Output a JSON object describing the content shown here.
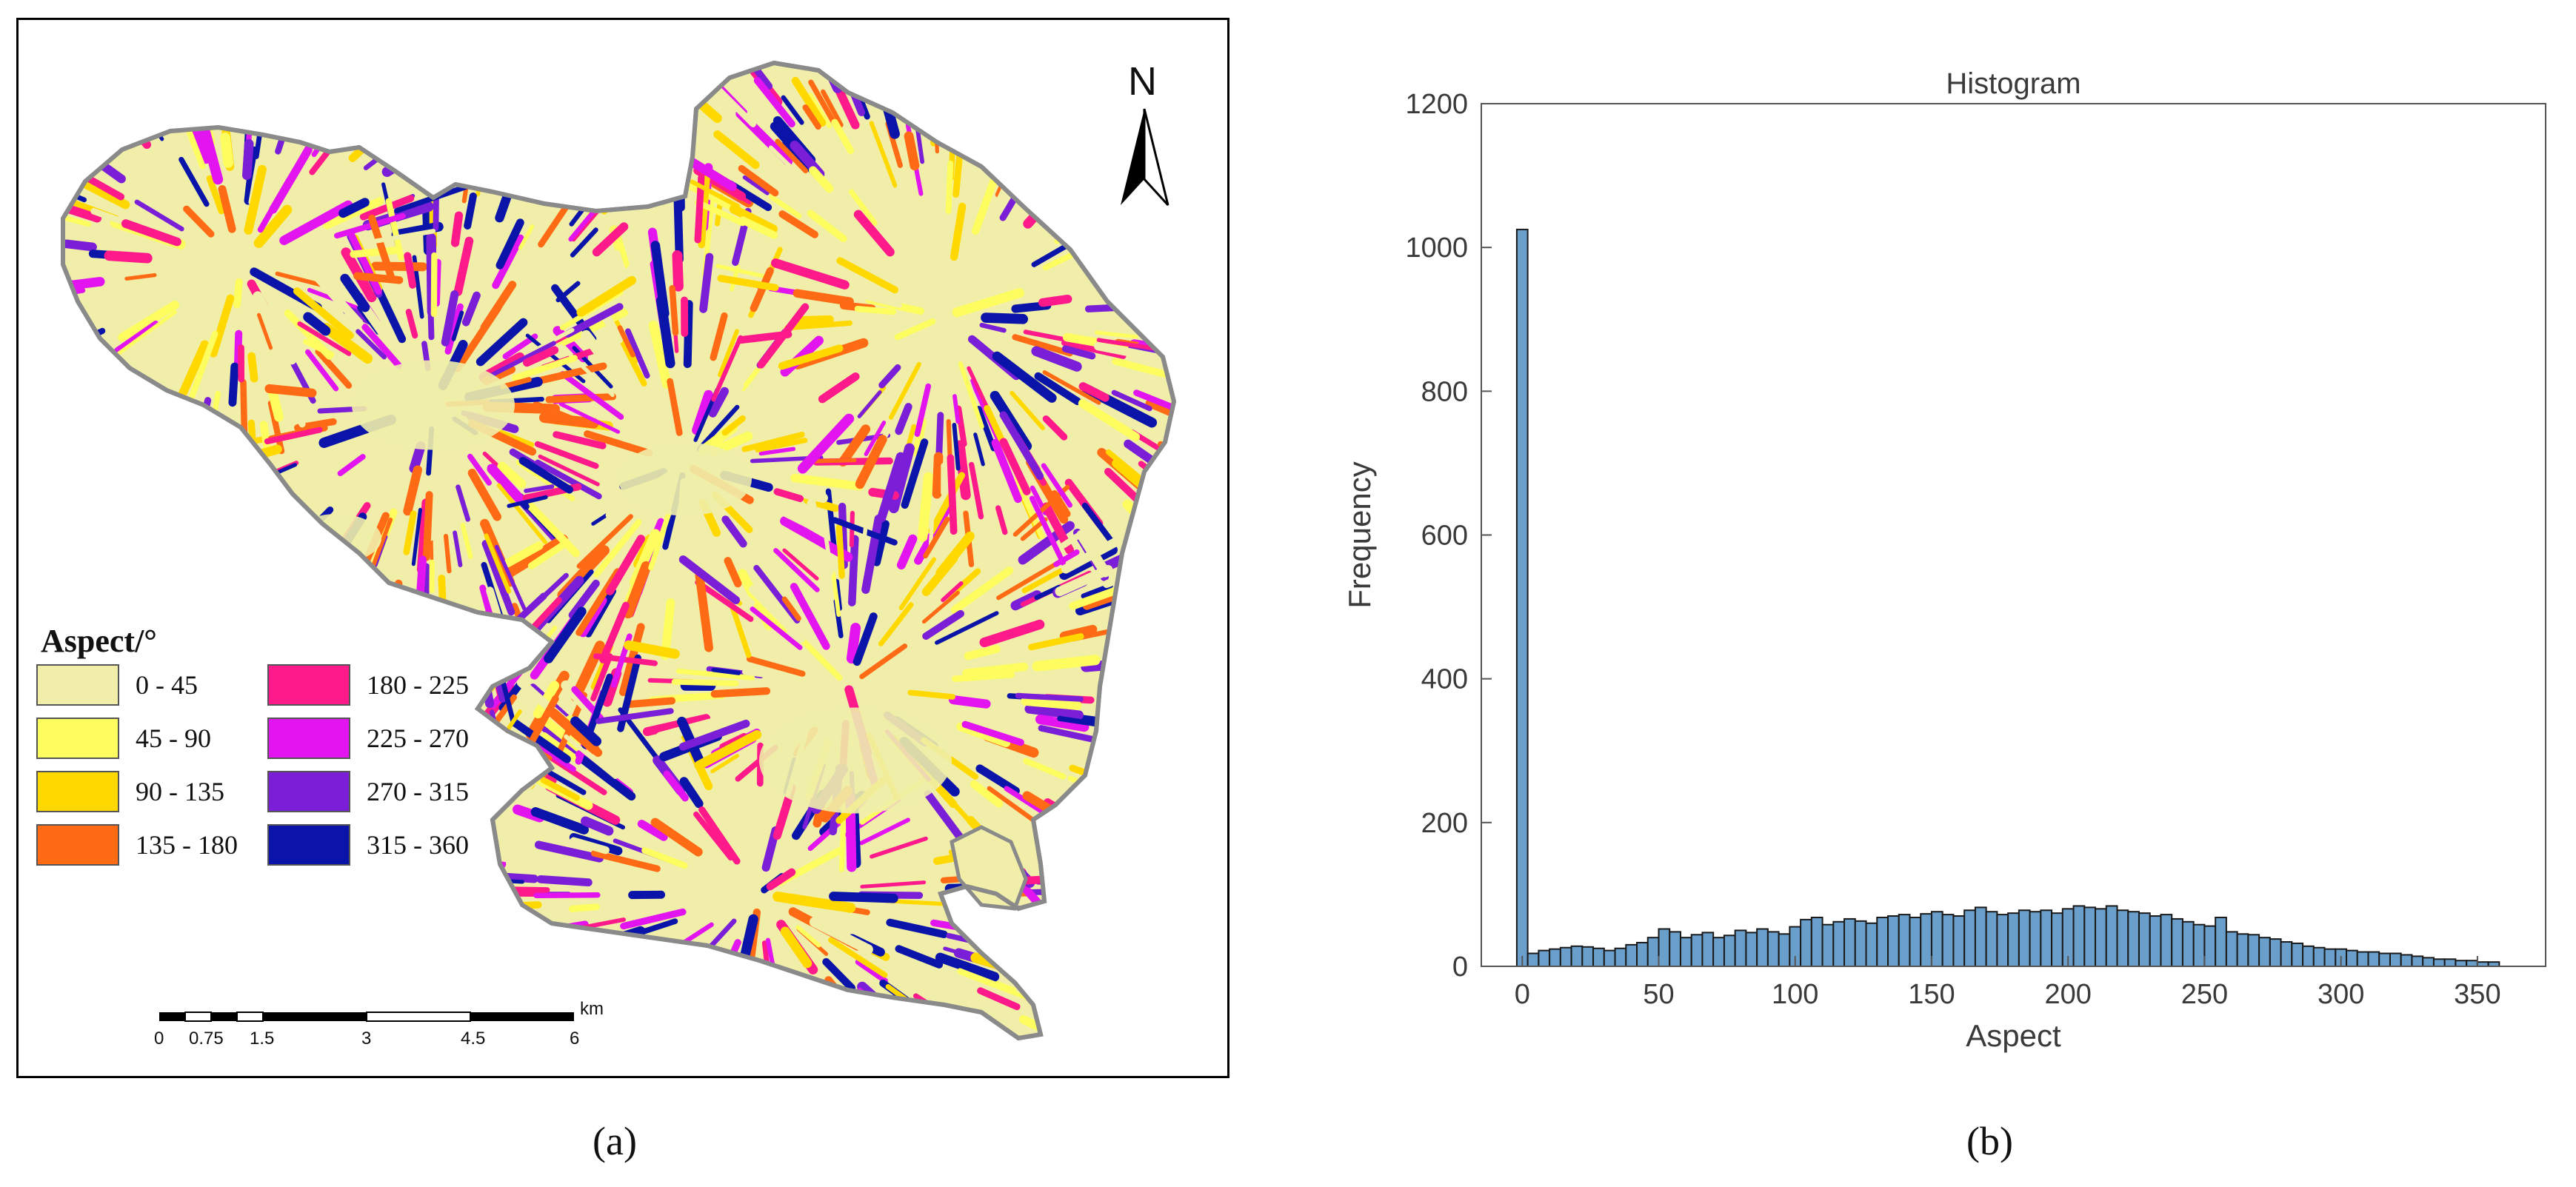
{
  "panel_a": {
    "caption": "(a)",
    "legend_title": "Aspect/°",
    "legend": [
      {
        "label": "0 - 45",
        "color": "#f0eea8"
      },
      {
        "label": "45 - 90",
        "color": "#fdfd60"
      },
      {
        "label": "90 - 135",
        "color": "#ffd800"
      },
      {
        "label": "135 - 180",
        "color": "#ff6a14"
      },
      {
        "label": "180 - 225",
        "color": "#ff1a8c"
      },
      {
        "label": "225 - 270",
        "color": "#e214f0"
      },
      {
        "label": "270 - 315",
        "color": "#7a1ed8"
      },
      {
        "label": "315 - 360",
        "color": "#0a14a8"
      }
    ],
    "north_arrow": "N",
    "scale_bar": {
      "unit": "km",
      "labels": [
        "0",
        "0.75",
        "1.5",
        "3",
        "4.5",
        "6"
      ]
    }
  },
  "panel_b": {
    "caption": "(b)",
    "chart_data": {
      "type": "bar",
      "title": "Histogram",
      "xlabel": "Aspect",
      "ylabel": "Frequency",
      "xlim": [
        -15,
        375
      ],
      "ylim": [
        0,
        1200
      ],
      "xticks": [
        0,
        50,
        100,
        150,
        200,
        250,
        300,
        350
      ],
      "yticks": [
        0,
        200,
        400,
        600,
        800,
        1000,
        1200
      ],
      "bin_width": 4,
      "bin_start": -2,
      "bar_color": "#6a9fcb",
      "values": [
        1025,
        18,
        22,
        24,
        26,
        28,
        27,
        25,
        22,
        25,
        30,
        33,
        40,
        52,
        48,
        40,
        44,
        47,
        40,
        43,
        50,
        47,
        52,
        48,
        45,
        55,
        65,
        68,
        58,
        62,
        66,
        63,
        60,
        68,
        70,
        72,
        68,
        73,
        76,
        72,
        70,
        78,
        82,
        76,
        72,
        74,
        78,
        76,
        78,
        74,
        80,
        84,
        82,
        80,
        84,
        78,
        76,
        74,
        70,
        72,
        66,
        62,
        58,
        56,
        68,
        48,
        45,
        44,
        40,
        38,
        34,
        32,
        28,
        26,
        24,
        24,
        22,
        20,
        20,
        18,
        18,
        16,
        14,
        12,
        10,
        10,
        8,
        8,
        6,
        6
      ]
    }
  }
}
